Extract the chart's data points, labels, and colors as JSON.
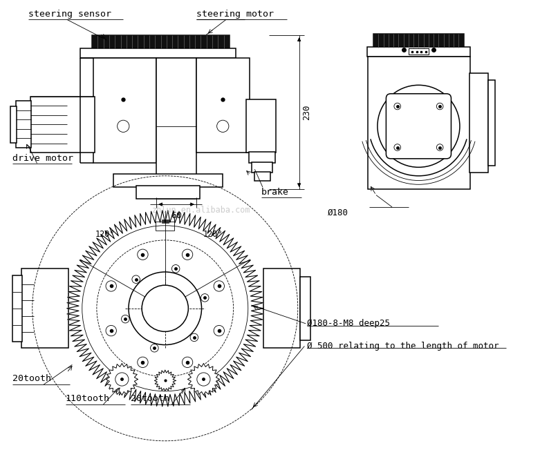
{
  "bg_color": "#ffffff",
  "line_color": "#000000",
  "fig_width": 7.81,
  "fig_height": 6.65,
  "labels": {
    "steering_sensor": "steering sensor",
    "steering_motor": "steering motor",
    "drive_motor": "drive motor",
    "brake": "brake",
    "dim_230": "230",
    "dim_60": "60",
    "dim_phi180": "Ø180",
    "dim_phi180_deep": "Ø180-8-M8 deep25",
    "dim_phi500": "Ø 500 relating to the length of motor",
    "angle_120_left": "120°",
    "angle_120_right": "120°",
    "tooth_20_left": "20tooth",
    "tooth_110": "110tooth",
    "tooth_20_right": "20tooth",
    "watermark": "zhlun.en.alibaba.com"
  }
}
